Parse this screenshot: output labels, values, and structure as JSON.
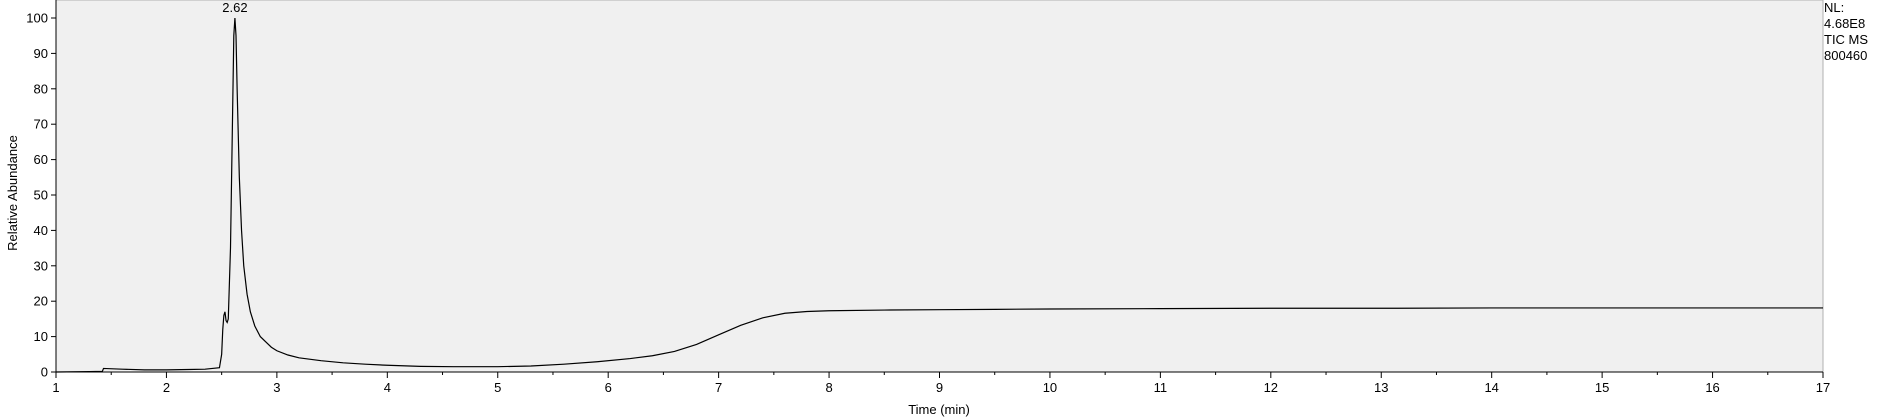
{
  "info": {
    "nl_label": "NL:",
    "nl_value": "4.68E8",
    "scan_filter": "TIC  MS",
    "file_name": "800460"
  },
  "chart_data": {
    "type": "line",
    "xlabel": "Time (min)",
    "ylabel": "Relative Abundance",
    "xlim": [
      1,
      17
    ],
    "ylim": [
      0,
      100
    ],
    "x_ticks": [
      1,
      2,
      3,
      4,
      5,
      6,
      7,
      8,
      9,
      10,
      11,
      12,
      13,
      14,
      15,
      16,
      17
    ],
    "y_ticks": [
      0,
      10,
      20,
      30,
      40,
      50,
      60,
      70,
      80,
      90,
      100
    ],
    "grid": false,
    "background_color": "#f0f0f0",
    "line_color": "#000000",
    "annotations": [
      {
        "x": 2.62,
        "y": 100,
        "text": "2.62"
      }
    ],
    "series": [
      {
        "x": [
          1.0,
          1.3,
          1.42,
          1.43,
          1.6,
          1.8,
          2.0,
          2.2,
          2.35,
          2.48,
          2.5,
          2.51,
          2.52,
          2.53,
          2.54,
          2.55,
          2.56,
          2.58,
          2.6,
          2.61,
          2.62,
          2.63,
          2.64,
          2.66,
          2.68,
          2.7,
          2.73,
          2.76,
          2.8,
          2.85,
          2.9,
          2.95,
          3.0,
          3.1,
          3.2,
          3.4,
          3.6,
          3.8,
          4.0,
          4.3,
          4.6,
          5.0,
          5.3,
          5.6,
          5.9,
          6.2,
          6.4,
          6.6,
          6.8,
          7.0,
          7.2,
          7.4,
          7.6,
          7.8,
          8.0,
          8.5,
          9.0,
          9.5,
          10.0,
          11.0,
          12.0,
          13.0,
          14.0,
          15.0,
          16.0,
          17.0
        ],
        "y": [
          0.0,
          0.1,
          0.2,
          1.0,
          0.8,
          0.6,
          0.6,
          0.7,
          0.8,
          1.2,
          5.0,
          12.0,
          16.0,
          17.0,
          14.5,
          14.0,
          15.0,
          35.0,
          75.0,
          95.0,
          100.0,
          95.0,
          80.0,
          55.0,
          40.0,
          30.0,
          22.0,
          17.0,
          13.0,
          10.0,
          8.5,
          7.0,
          6.0,
          4.8,
          4.0,
          3.2,
          2.6,
          2.2,
          1.9,
          1.6,
          1.5,
          1.5,
          1.7,
          2.2,
          2.9,
          3.8,
          4.6,
          5.8,
          7.8,
          10.5,
          13.2,
          15.3,
          16.6,
          17.1,
          17.3,
          17.5,
          17.6,
          17.7,
          17.8,
          17.9,
          18.0,
          18.0,
          18.1,
          18.1,
          18.1,
          18.1
        ]
      }
    ]
  }
}
